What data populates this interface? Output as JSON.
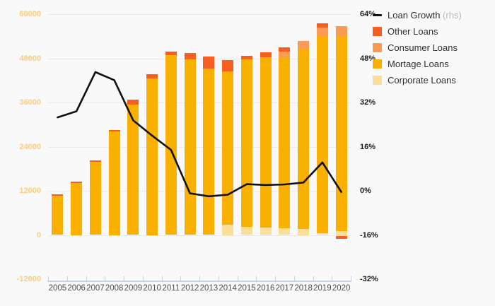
{
  "chart_data": {
    "type": "bar",
    "subtype": "stacked-bar-with-line-overlay",
    "title": "",
    "categories": [
      "2005",
      "2006",
      "2007",
      "2008",
      "2009",
      "2010",
      "2011",
      "2012",
      "2013",
      "2014",
      "2015",
      "2016",
      "2017",
      "2018",
      "2019",
      "2020"
    ],
    "series": [
      {
        "name": "Corporate Loans",
        "type": "bar",
        "axis": "left",
        "color": "#fade9a",
        "values": [
          0,
          0,
          0,
          0,
          0,
          0,
          0,
          0,
          0,
          2700,
          2200,
          2050,
          1900,
          1650,
          400,
          1050
        ]
      },
      {
        "name": "Mortage Loans",
        "type": "bar",
        "axis": "left",
        "color": "#f9b000",
        "values": [
          10700,
          14100,
          19900,
          28200,
          35500,
          42600,
          48850,
          47800,
          45250,
          41700,
          45600,
          46300,
          46400,
          48950,
          53600,
          53050
        ]
      },
      {
        "name": "Consumer Loans",
        "type": "bar",
        "axis": "left",
        "color": "#fb9a51",
        "values": [
          0,
          0,
          0,
          0,
          0,
          0,
          0,
          0,
          0,
          0,
          0,
          0,
          1600,
          2100,
          2300,
          2700
        ]
      },
      {
        "name": "Other Loans",
        "type": "bar",
        "axis": "left",
        "color": "#f85d22",
        "values": [
          400,
          400,
          400,
          400,
          1300,
          1050,
          950,
          1700,
          3150,
          3200,
          800,
          1350,
          1000,
          0,
          1150,
          -900
        ]
      },
      {
        "name": "Loan Growth",
        "type": "line",
        "axis": "right",
        "color": "#111111",
        "values": [
          26.6,
          28.8,
          43.0,
          40.1,
          25.5,
          20.0,
          14.8,
          -0.9,
          -2.0,
          -1.4,
          2.4,
          2.1,
          2.3,
          3.0,
          10.3,
          -0.4
        ]
      }
    ],
    "left_axis": {
      "ticks": [
        "60000",
        "48000",
        "36000",
        "24000",
        "12000",
        "0",
        "-12000"
      ],
      "min": -12000,
      "max": 60000,
      "label_color": "#fbcc80"
    },
    "right_axis": {
      "ticks": [
        "64%",
        "48%",
        "32%",
        "16%",
        "0%",
        "-16%",
        "-32%"
      ],
      "min": -32,
      "max": 64,
      "unit": "%"
    },
    "grid": "horizontal",
    "legend_position": "top-right"
  },
  "legend": {
    "items": [
      {
        "label": "Loan Growth",
        "suffix": " (rhs)",
        "swatch": "line",
        "color": "#111111"
      },
      {
        "label": "Other Loans",
        "swatch": "square",
        "color": "#f85d22"
      },
      {
        "label": "Consumer Loans",
        "swatch": "square",
        "color": "#fb9a51"
      },
      {
        "label": "Mortage Loans",
        "swatch": "square",
        "color": "#f9b000"
      },
      {
        "label": "Corporate Loans",
        "swatch": "square",
        "color": "#fade9a"
      }
    ]
  },
  "colors": {
    "background": "#f9f9f9",
    "gridline": "#e9e9e9",
    "axis_line": "#c9d1e4",
    "left_tick_labels": "#fbcc80",
    "right_tick_labels": "#1b1b1b",
    "x_labels": "#4f4f4f"
  }
}
